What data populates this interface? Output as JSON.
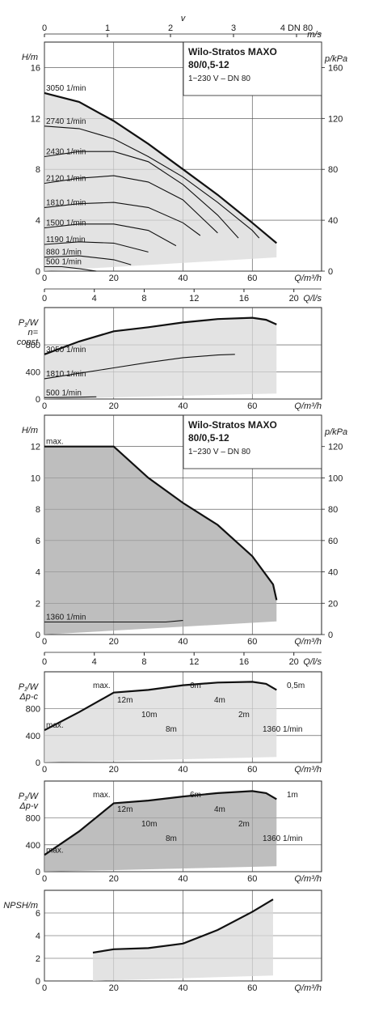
{
  "chart_data": [
    {
      "type": "line",
      "panel": "H-Q (n=const)",
      "title": "Wilo-Stratos MAXO",
      "subtitle_model": "80/0,5-12",
      "subtitle_spec": "1~230 V – DN 80",
      "xlabel": "Q/m³/h",
      "ylabel": "H/m",
      "y2label": "p/kPa",
      "xlim": [
        0,
        80
      ],
      "ylim": [
        0,
        18
      ],
      "x_ticks": [
        "0",
        "20",
        "40",
        "60"
      ],
      "y_ticks": [
        "0",
        "4",
        "8",
        "12",
        "16"
      ],
      "y2_ticks": [
        "0",
        "40",
        "80",
        "120",
        "160"
      ],
      "v_axis": {
        "label": "v",
        "unit": "m/s",
        "ticks": [
          "0",
          "1",
          "2",
          "3",
          "4 DN 80"
        ]
      },
      "ql_axis": {
        "label": "Q/l/s",
        "ticks": [
          "0",
          "4",
          "8",
          "12",
          "16",
          "20"
        ]
      },
      "series": [
        {
          "name": "3050 1/min",
          "x": [
            0,
            10,
            20,
            30,
            40,
            50,
            60,
            67
          ],
          "y": [
            14,
            13.3,
            11.8,
            10.0,
            8.0,
            6.0,
            3.8,
            2.2
          ]
        },
        {
          "name": "2740 1/min",
          "x": [
            0,
            10,
            20,
            30,
            40,
            50,
            60,
            62
          ],
          "y": [
            11.4,
            11.2,
            10.4,
            9.0,
            7.4,
            5.4,
            3.2,
            2.6
          ]
        },
        {
          "name": "2430 1/min",
          "x": [
            0,
            10,
            20,
            30,
            40,
            50,
            56
          ],
          "y": [
            9.0,
            9.4,
            9.4,
            8.6,
            6.8,
            4.4,
            2.6
          ]
        },
        {
          "name": "2120 1/min",
          "x": [
            0,
            10,
            20,
            30,
            40,
            50
          ],
          "y": [
            6.9,
            7.3,
            7.5,
            7.0,
            5.6,
            3.0
          ]
        },
        {
          "name": "1810 1/min",
          "x": [
            0,
            10,
            20,
            30,
            40,
            45
          ],
          "y": [
            5.0,
            5.3,
            5.4,
            5.0,
            3.8,
            2.8
          ]
        },
        {
          "name": "1500 1/min",
          "x": [
            0,
            10,
            20,
            30,
            38
          ],
          "y": [
            3.4,
            3.7,
            3.7,
            3.2,
            2.0
          ]
        },
        {
          "name": "1190 1/min",
          "x": [
            0,
            10,
            20,
            30
          ],
          "y": [
            2.1,
            2.3,
            2.2,
            1.5
          ]
        },
        {
          "name": "880 1/min",
          "x": [
            0,
            10,
            20,
            25
          ],
          "y": [
            1.1,
            1.2,
            0.9,
            0.5
          ]
        },
        {
          "name": "500 1/min",
          "x": [
            0,
            5,
            10,
            15
          ],
          "y": [
            0.35,
            0.35,
            0.2,
            0.0
          ]
        }
      ]
    },
    {
      "type": "line",
      "panel": "P1-Q (n=const)",
      "ylabel": "P₁/W",
      "ylabel2": "n=",
      "ylabel3": "const",
      "xlabel": "Q/m³/h",
      "xlim": [
        0,
        80
      ],
      "ylim": [
        0,
        1350
      ],
      "x_ticks": [
        "0",
        "20",
        "40",
        "60"
      ],
      "y_ticks": [
        "0",
        "400",
        "800"
      ],
      "series": [
        {
          "name": "3050 1/min",
          "x": [
            0,
            10,
            20,
            30,
            40,
            50,
            60,
            64,
            67
          ],
          "y": [
            660,
            850,
            1000,
            1060,
            1130,
            1180,
            1200,
            1170,
            1100
          ]
        },
        {
          "name": "1810 1/min",
          "x": [
            0,
            10,
            20,
            30,
            40,
            50,
            55
          ],
          "y": [
            300,
            380,
            460,
            540,
            610,
            650,
            660
          ]
        },
        {
          "name": "500 1/min",
          "x": [
            0,
            10,
            15
          ],
          "y": [
            20,
            28,
            32
          ]
        }
      ]
    },
    {
      "type": "line",
      "panel": "H-Q (Δp-c / Δp-v)",
      "title": "Wilo-Stratos MAXO",
      "subtitle_model": "80/0,5-12",
      "subtitle_spec": "1~230 V – DN 80",
      "xlabel": "Q/m³/h",
      "ylabel": "H/m",
      "y2label": "p/kPa",
      "xlim": [
        0,
        80
      ],
      "ylim": [
        0,
        14
      ],
      "x_ticks": [
        "0",
        "20",
        "40",
        "60"
      ],
      "y_ticks": [
        "0",
        "2",
        "4",
        "6",
        "8",
        "10",
        "12"
      ],
      "y2_ticks": [
        "0",
        "20",
        "40",
        "60",
        "80",
        "100",
        "120"
      ],
      "ql_axis": {
        "label": "Q/l/s",
        "ticks": [
          "0",
          "4",
          "8",
          "12",
          "16",
          "20"
        ]
      },
      "series": [
        {
          "name": "max.",
          "x": [
            0,
            20,
            30,
            40,
            50,
            60,
            66,
            67
          ],
          "y": [
            12,
            12,
            10,
            8.4,
            7.0,
            5.0,
            3.2,
            2.2
          ]
        },
        {
          "name": "1360 1/min",
          "x": [
            0,
            20,
            35,
            40
          ],
          "y": [
            0.8,
            0.8,
            0.8,
            0.9
          ]
        }
      ]
    },
    {
      "type": "line",
      "panel": "P1-Q (Δp-c)",
      "ylabel": "P₁/W",
      "ylabel2": "Δp-c",
      "xlabel": "Q/m³/h",
      "xlim": [
        0,
        80
      ],
      "ylim": [
        0,
        1350
      ],
      "x_ticks": [
        "0",
        "20",
        "40",
        "60"
      ],
      "y_ticks": [
        "0",
        "400",
        "800"
      ],
      "annotations": [
        "max.",
        "12m",
        "10m",
        "8m",
        "6m",
        "4m",
        "2m",
        "1360 1/min",
        "0,5m"
      ],
      "series": [
        {
          "name": "max.",
          "x": [
            0,
            10,
            20,
            30,
            40,
            50,
            60,
            64,
            67
          ],
          "y": [
            480,
            750,
            1040,
            1080,
            1150,
            1190,
            1200,
            1170,
            1080
          ]
        }
      ]
    },
    {
      "type": "line",
      "panel": "P1-Q (Δp-v)",
      "ylabel": "P₁/W",
      "ylabel2": "Δp-v",
      "xlabel": "Q/m³/h",
      "xlim": [
        0,
        80
      ],
      "ylim": [
        0,
        1350
      ],
      "x_ticks": [
        "0",
        "20",
        "40",
        "60"
      ],
      "y_ticks": [
        "0",
        "400",
        "800"
      ],
      "annotations": [
        "max.",
        "12m",
        "10m",
        "8m",
        "6m",
        "4m",
        "2m",
        "1360 1/min",
        "1m"
      ],
      "series": [
        {
          "name": "max.",
          "x": [
            0,
            10,
            20,
            30,
            40,
            50,
            60,
            64,
            67
          ],
          "y": [
            250,
            600,
            1020,
            1060,
            1120,
            1170,
            1200,
            1170,
            1080
          ]
        }
      ]
    },
    {
      "type": "line",
      "panel": "NPSH-Q",
      "ylabel": "NPSH/m",
      "xlabel": "Q/m³/h",
      "xlim": [
        0,
        80
      ],
      "ylim": [
        0,
        8
      ],
      "x_ticks": [
        "0",
        "20",
        "40",
        "60"
      ],
      "y_ticks": [
        "0",
        "2",
        "4",
        "6"
      ],
      "series": [
        {
          "name": "",
          "x": [
            14,
            20,
            30,
            40,
            50,
            60,
            66
          ],
          "y": [
            2.5,
            2.8,
            2.9,
            3.3,
            4.5,
            6.1,
            7.2
          ]
        }
      ]
    }
  ]
}
